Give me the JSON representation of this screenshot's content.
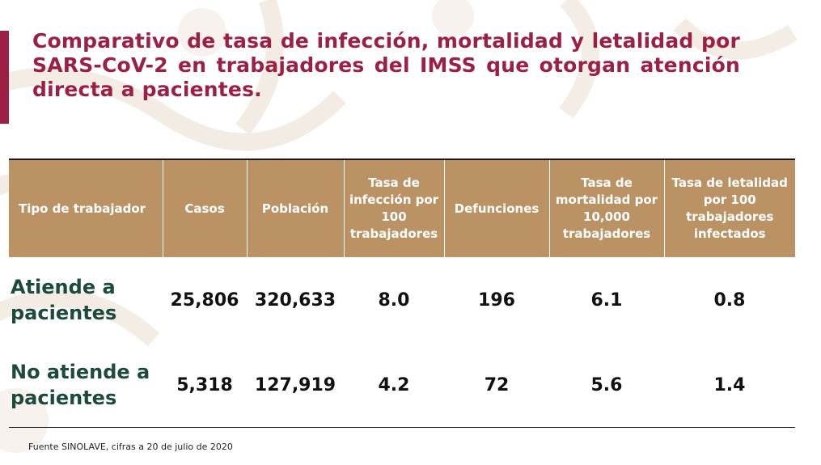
{
  "slide": {
    "title": "Comparativo de tasa de infección, mortalidad y letalidad por SARS-CoV-2 en trabajadores del IMSS que otorgan atención directa a pacientes.",
    "footer": "Fuente SINOLAVE, cifras a 20 de julio de 2020",
    "colors": {
      "title": "#9c1f45",
      "accent_bar": "#9c1f45",
      "header_bg": "#bb9263",
      "row_label": "#1c4a3c"
    }
  },
  "table": {
    "headers": [
      "Tipo de trabajador",
      "Casos",
      "Población",
      "Tasa de infección por 100 trabajadores",
      "Defunciones",
      "Tasa de mortalidad por 10,000 trabajadores",
      "Tasa de letalidad por 100 trabajadores infectados"
    ],
    "rows": [
      [
        "Atiende a pacientes",
        "25,806",
        "320,633",
        "8.0",
        "196",
        "6.1",
        "0.8"
      ],
      [
        "No atiende a pacientes",
        "5,318",
        "127,919",
        "4.2",
        "72",
        "5.6",
        "1.4"
      ]
    ]
  }
}
